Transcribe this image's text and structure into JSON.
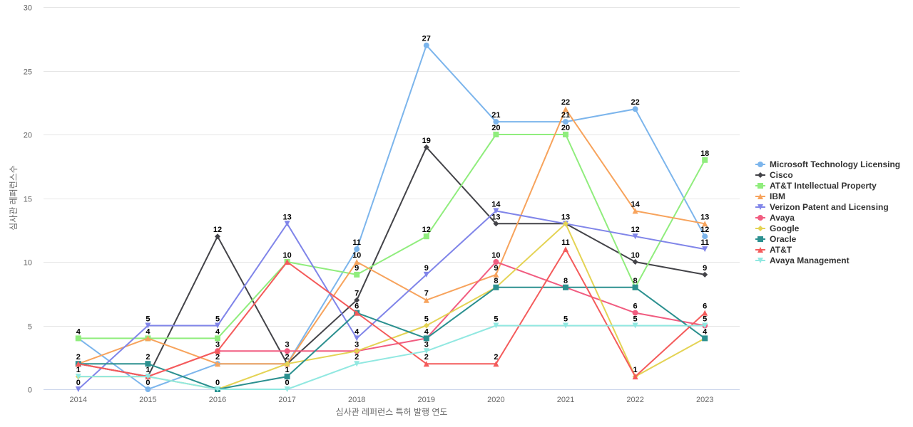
{
  "chart_data": {
    "type": "line",
    "title": "",
    "xlabel": "심사관 레퍼런스 특허 발행 연도",
    "ylabel": "심사관 레퍼런스수",
    "x": [
      "2014",
      "2015",
      "2016",
      "2017",
      "2018",
      "2019",
      "2020",
      "2021",
      "2022",
      "2023"
    ],
    "ylim": [
      0,
      30
    ],
    "yticks": [
      0,
      5,
      10,
      15,
      20,
      25,
      30
    ],
    "grid": true,
    "legend_position": "right",
    "data_labels": true,
    "series": [
      {
        "name": "Microsoft Technology Licensing",
        "color": "#7cb5ec",
        "marker": "circle",
        "values": [
          4,
          0,
          2,
          2,
          11,
          27,
          21,
          21,
          22,
          12
        ]
      },
      {
        "name": "Cisco",
        "color": "#434348",
        "marker": "diamond",
        "values": [
          2,
          1,
          12,
          2,
          7,
          19,
          13,
          13,
          10,
          9
        ]
      },
      {
        "name": "AT&T Intellectual Property",
        "color": "#90ed7d",
        "marker": "square",
        "values": [
          4,
          4,
          4,
          10,
          9,
          12,
          20,
          20,
          8,
          18
        ]
      },
      {
        "name": "IBM",
        "color": "#f7a35c",
        "marker": "triangle",
        "values": [
          2,
          4,
          2,
          2,
          10,
          7,
          9,
          22,
          14,
          13
        ]
      },
      {
        "name": "Verizon Patent and Licensing",
        "color": "#8085e9",
        "marker": "triangle-down",
        "values": [
          0,
          5,
          5,
          13,
          4,
          9,
          14,
          13,
          12,
          11
        ]
      },
      {
        "name": "Avaya",
        "color": "#f15c80",
        "marker": "circle",
        "values": [
          2,
          1,
          3,
          3,
          3,
          4,
          10,
          8,
          6,
          5
        ]
      },
      {
        "name": "Google",
        "color": "#e4d354",
        "marker": "diamond",
        "values": [
          1,
          1,
          0,
          2,
          3,
          5,
          8,
          13,
          1,
          4
        ]
      },
      {
        "name": "Oracle",
        "color": "#2b908f",
        "marker": "square",
        "values": [
          2,
          2,
          0,
          1,
          6,
          4,
          8,
          8,
          8,
          4
        ]
      },
      {
        "name": "AT&T",
        "color": "#f45b5b",
        "marker": "triangle",
        "values": [
          2,
          1,
          3,
          10,
          6,
          2,
          2,
          11,
          1,
          6
        ]
      },
      {
        "name": "Avaya Management",
        "color": "#91e8e1",
        "marker": "triangle-down",
        "values": [
          1,
          1,
          0,
          0,
          2,
          3,
          5,
          5,
          5,
          5
        ]
      }
    ]
  }
}
